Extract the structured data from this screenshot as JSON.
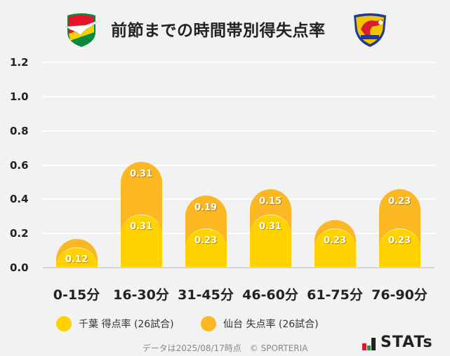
{
  "header": {
    "title": "前節までの時間帯別得失点率",
    "left_team_logo": "jef-united-chiba-crest",
    "right_team_logo": "vegalta-sendai-crest"
  },
  "chart_data": {
    "type": "bar",
    "stacked": true,
    "title": "前節までの時間帯別得失点率",
    "categories": [
      "0-15分",
      "16-30分",
      "31-45分",
      "46-60分",
      "61-75分",
      "76-90分"
    ],
    "series": [
      {
        "name": "千葉 得点率 (26試合)",
        "color": "#ffd200",
        "values": [
          0.12,
          0.31,
          0.23,
          0.31,
          0.23,
          0.23
        ]
      },
      {
        "name": "仙台 失点率 (26試合)",
        "color": "#fbb823",
        "values": [
          0.0,
          0.31,
          0.19,
          0.15,
          0.0,
          0.23
        ]
      }
    ],
    "xlabel": "",
    "ylabel": "",
    "ylim": [
      0,
      1.2
    ],
    "yticks": [
      "0.0",
      "0.2",
      "0.4",
      "0.6",
      "0.8",
      "1.0",
      "1.2"
    ],
    "grid": true,
    "legend_position": "bottom"
  },
  "labels": {
    "bars": [
      {
        "chiba": "0.12",
        "sendai": ""
      },
      {
        "chiba": "0.31",
        "sendai": "0.31"
      },
      {
        "chiba": "0.23",
        "sendai": "0.19"
      },
      {
        "chiba": "0.31",
        "sendai": "0.15"
      },
      {
        "chiba": "0.23",
        "sendai": ""
      },
      {
        "chiba": "0.23",
        "sendai": "0.23"
      }
    ]
  },
  "legend": [
    {
      "label": "千葉 得点率 (26試合)",
      "color": "#ffd200"
    },
    {
      "label": "仙台 失点率 (26試合)",
      "color": "#fbb823"
    }
  ],
  "footer": {
    "note": "データは2025/08/17時点　© SPORTERIA",
    "brand": "STATs"
  }
}
